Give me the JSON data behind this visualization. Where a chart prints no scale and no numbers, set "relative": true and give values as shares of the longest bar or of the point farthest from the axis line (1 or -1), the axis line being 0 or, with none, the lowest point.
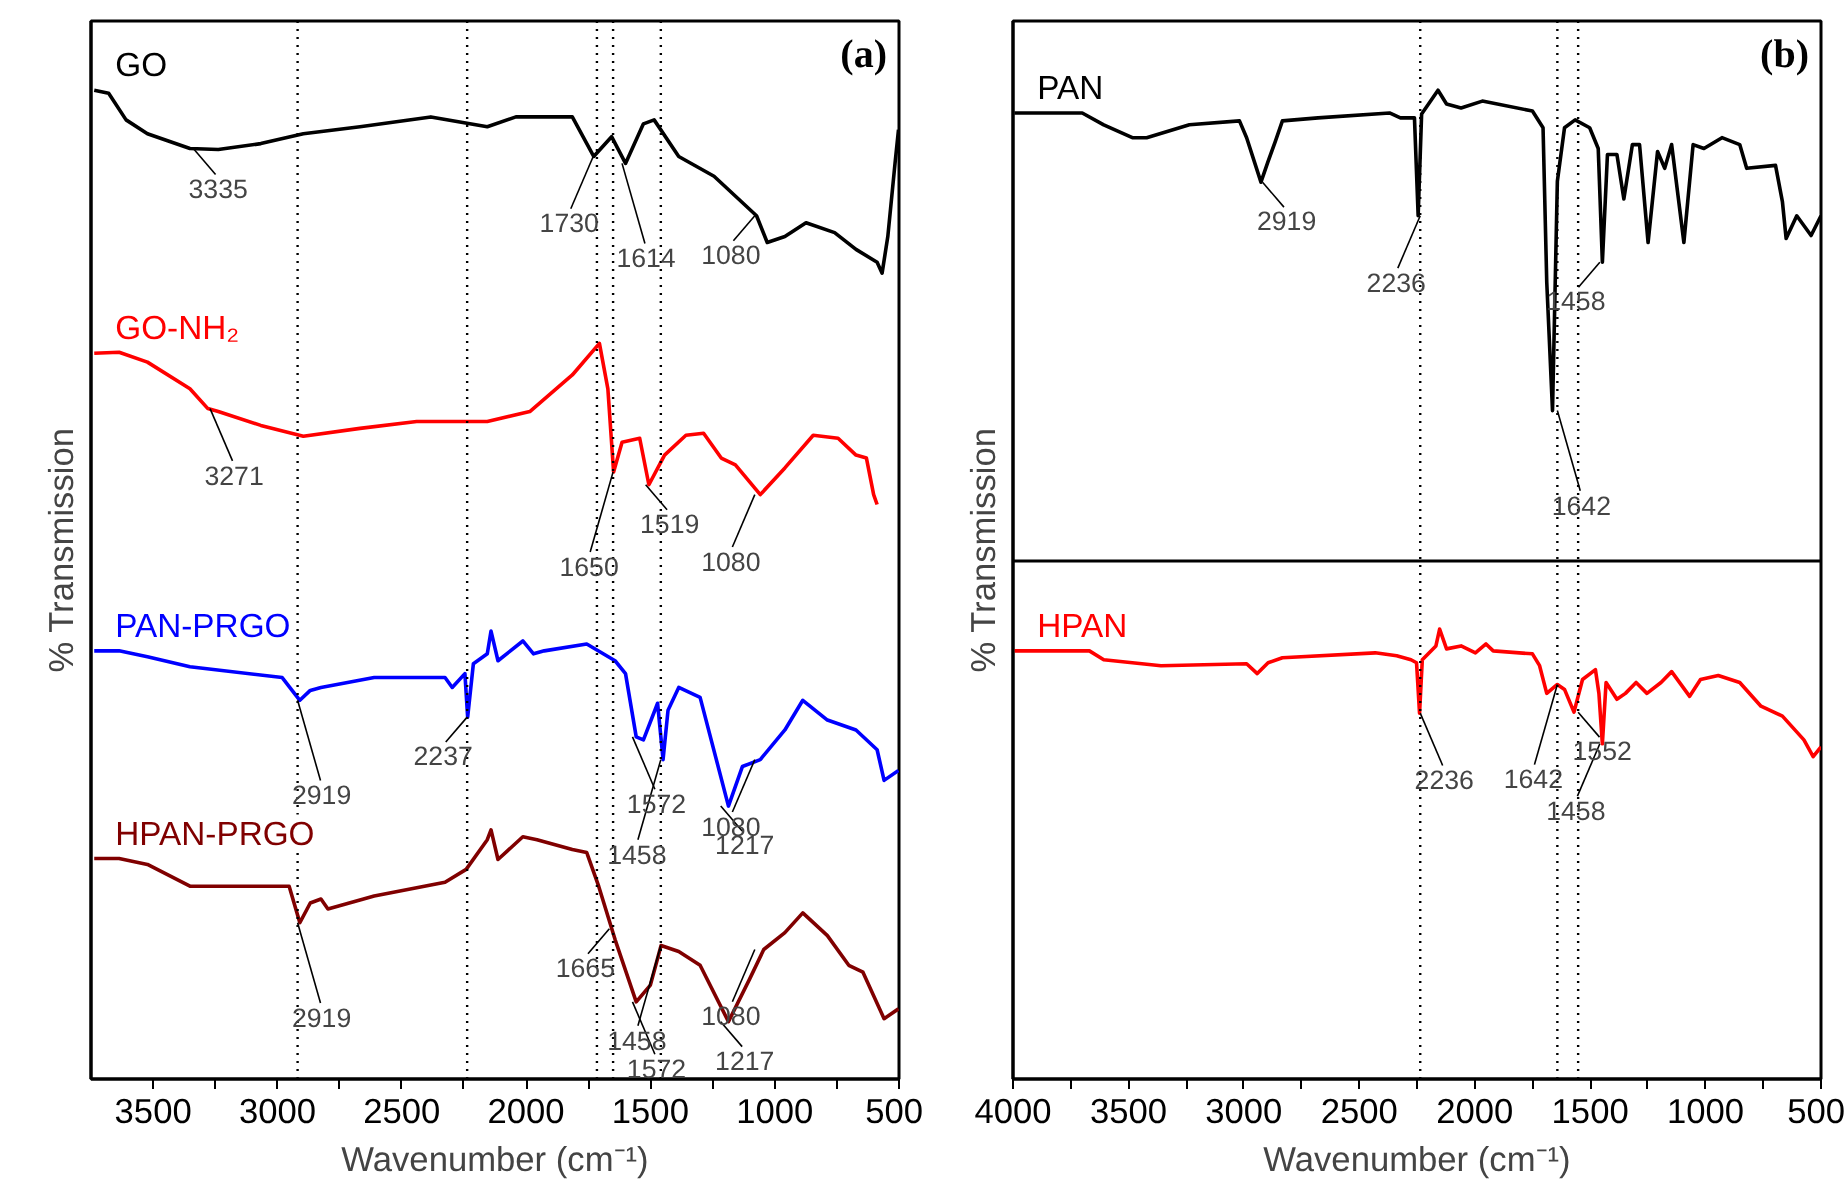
{
  "chart_data": [
    {
      "type": "line",
      "title": "(a)",
      "xlabel": "Wavenumber (cm⁻¹)",
      "ylabel": "% Transmission",
      "relative": true,
      "xlim": [
        3750,
        500
      ],
      "xticks": [
        3500,
        {
          "value": 3250,
          "label": null
        },
        3000,
        {
          "value": 2750,
          "label": null
        },
        2500,
        {
          "value": 2250,
          "label": null
        },
        2000,
        {
          "value": 1750,
          "label": null
        },
        1500,
        {
          "value": 1250,
          "label": null
        },
        1000,
        {
          "value": 750,
          "label": null
        },
        500
      ],
      "series": [
        {
          "name": "GO",
          "color": "#000000",
          "x": [
            3737,
            3679,
            3609,
            3523,
            3352,
            3238,
            3067,
            2896,
            2668,
            2383,
            2156,
            2041,
            1814,
            1728,
            1656,
            1600,
            1528,
            1485,
            1386,
            1244,
            1073,
            1030,
            959,
            874,
            759,
            673,
            588,
            568,
            545,
            516,
            502
          ],
          "values": [
            1.0,
            0.997,
            0.97,
            0.956,
            0.941,
            0.94,
            0.946,
            0.956,
            0.963,
            0.973,
            0.963,
            0.973,
            0.973,
            0.933,
            0.953,
            0.926,
            0.966,
            0.97,
            0.933,
            0.913,
            0.873,
            0.846,
            0.852,
            0.866,
            0.856,
            0.839,
            0.826,
            0.815,
            0.852,
            0.926,
            0.96
          ]
        },
        {
          "name": "GO-NH₂",
          "color": "#ff0000",
          "x": [
            3737,
            3637,
            3523,
            3352,
            3280,
            3238,
            3067,
            2896,
            2668,
            2440,
            2156,
            1985,
            1814,
            1705,
            1671,
            1648,
            1614,
            1543,
            1506,
            1443,
            1357,
            1286,
            1215,
            1158,
            1058,
            959,
            845,
            745,
            673,
            631,
            602,
            588
          ],
          "values": [
            0.734,
            0.735,
            0.725,
            0.698,
            0.678,
            0.675,
            0.661,
            0.65,
            0.658,
            0.665,
            0.665,
            0.675,
            0.712,
            0.744,
            0.698,
            0.614,
            0.644,
            0.648,
            0.601,
            0.631,
            0.651,
            0.653,
            0.628,
            0.621,
            0.591,
            0.618,
            0.651,
            0.648,
            0.631,
            0.628,
            0.591,
            0.581
          ]
        },
        {
          "name": "PAN-PRGO",
          "color": "#0000ff",
          "x": [
            3737,
            3637,
            3523,
            3352,
            2981,
            2910,
            2868,
            2825,
            2611,
            2326,
            2297,
            2246,
            2235,
            2212,
            2156,
            2141,
            2113,
            2013,
            1970,
            1927,
            1756,
            1642,
            1600,
            1557,
            1528,
            1471,
            1449,
            1429,
            1386,
            1300,
            1186,
            1130,
            1058,
            959,
            887,
            788,
            673,
            588,
            560,
            502
          ],
          "values": [
            0.433,
            0.433,
            0.427,
            0.417,
            0.406,
            0.383,
            0.393,
            0.396,
            0.406,
            0.406,
            0.396,
            0.41,
            0.366,
            0.42,
            0.43,
            0.453,
            0.423,
            0.443,
            0.43,
            0.433,
            0.44,
            0.423,
            0.41,
            0.346,
            0.343,
            0.38,
            0.323,
            0.373,
            0.396,
            0.386,
            0.276,
            0.316,
            0.323,
            0.353,
            0.383,
            0.363,
            0.353,
            0.333,
            0.302,
            0.312
          ]
        },
        {
          "name": "HPAN-PRGO",
          "color": "#800000",
          "x": [
            3737,
            3637,
            3523,
            3352,
            2953,
            2910,
            2868,
            2825,
            2797,
            2611,
            2326,
            2241,
            2156,
            2141,
            2113,
            2013,
            1956,
            1814,
            1756,
            1708,
            1642,
            1557,
            1500,
            1457,
            1386,
            1300,
            1186,
            1101,
            1044,
            959,
            887,
            788,
            702,
            645,
            560,
            502
          ],
          "values": [
            0.223,
            0.223,
            0.217,
            0.195,
            0.195,
            0.158,
            0.178,
            0.182,
            0.172,
            0.185,
            0.199,
            0.212,
            0.242,
            0.252,
            0.222,
            0.245,
            0.242,
            0.232,
            0.229,
            0.195,
            0.141,
            0.078,
            0.095,
            0.135,
            0.129,
            0.115,
            0.058,
            0.101,
            0.131,
            0.148,
            0.168,
            0.145,
            0.115,
            0.108,
            0.061,
            0.071
          ]
        }
      ],
      "annotations": [
        {
          "text": "3335",
          "x": 3335,
          "y": 0.94
        },
        {
          "text": "1730",
          "x": 1730,
          "y": 0.933
        },
        {
          "text": "1614",
          "x": 1614,
          "y": 0.926
        },
        {
          "text": "1080",
          "x": 1080,
          "y": 0.873
        },
        {
          "text": "3271",
          "x": 3271,
          "y": 0.678
        },
        {
          "text": "1650",
          "x": 1650,
          "y": 0.614
        },
        {
          "text": "1519",
          "x": 1519,
          "y": 0.601
        },
        {
          "text": "1080",
          "x": 1080,
          "y": 0.591
        },
        {
          "text": "2919",
          "x": 2919,
          "y": 0.383
        },
        {
          "text": "2237",
          "x": 2237,
          "y": 0.366
        },
        {
          "text": "1572",
          "x": 1572,
          "y": 0.346
        },
        {
          "text": "1458",
          "x": 1458,
          "y": 0.323
        },
        {
          "text": "1217",
          "x": 1217,
          "y": 0.276
        },
        {
          "text": "1080",
          "x": 1080,
          "y": 0.323
        },
        {
          "text": "2919",
          "x": 2919,
          "y": 0.158
        },
        {
          "text": "1665",
          "x": 1665,
          "y": 0.152
        },
        {
          "text": "1572",
          "x": 1572,
          "y": 0.078
        },
        {
          "text": "1458",
          "x": 1458,
          "y": 0.135
        },
        {
          "text": "1217",
          "x": 1217,
          "y": 0.058
        },
        {
          "text": "1080",
          "x": 1080,
          "y": 0.131
        }
      ],
      "ref_lines": [
        {
          "axis": "x",
          "value": 2919,
          "color": "#000000",
          "line_style": "dotted"
        },
        {
          "axis": "x",
          "value": 2237,
          "color": "#000000",
          "line_style": "dotted"
        },
        {
          "axis": "x",
          "value": 1715,
          "color": "#000000",
          "line_style": "dotted"
        },
        {
          "axis": "x",
          "value": 1650,
          "color": "#000000",
          "line_style": "dotted"
        },
        {
          "axis": "x",
          "value": 1458,
          "color": "#000000",
          "line_style": "dotted"
        }
      ]
    },
    {
      "type": "line",
      "title": "(b)",
      "xlabel": "Wavenumber (cm⁻¹)",
      "ylabel": "% Transmission",
      "relative": true,
      "xlim": [
        4000,
        500
      ],
      "xticks": [
        4000,
        {
          "value": 3750,
          "label": null
        },
        3500,
        {
          "value": 3250,
          "label": null
        },
        3000,
        {
          "value": 2750,
          "label": null
        },
        2500,
        {
          "value": 2250,
          "label": null
        },
        2000,
        {
          "value": 1750,
          "label": null
        },
        1500,
        {
          "value": 1250,
          "label": null
        },
        1000,
        {
          "value": 750,
          "label": null
        },
        500
      ],
      "series": [
        {
          "name": "PAN",
          "color": "#000000",
          "x": [
            3994,
            3700,
            3607,
            3483,
            3421,
            3236,
            3019,
            2988,
            2926,
            2895,
            2864,
            2833,
            2679,
            2369,
            2322,
            2261,
            2245,
            2230,
            2159,
            2122,
            2059,
            1967,
            1750,
            1704,
            1688,
            1663,
            1642,
            1611,
            1565,
            1502,
            1465,
            1447,
            1425,
            1384,
            1354,
            1317,
            1286,
            1249,
            1208,
            1177,
            1147,
            1094,
            1054,
            1007,
            929,
            852,
            822,
            697,
            667,
            651,
            605,
            543,
            500
          ],
          "values": [
            0.977,
            0.977,
            0.965,
            0.952,
            0.952,
            0.965,
            0.969,
            0.952,
            0.907,
            0.928,
            0.948,
            0.969,
            0.972,
            0.977,
            0.972,
            0.972,
            0.873,
            0.976,
            1.0,
            0.986,
            0.982,
            0.989,
            0.979,
            0.962,
            0.806,
            0.676,
            0.908,
            0.962,
            0.97,
            0.962,
            0.941,
            0.826,
            0.935,
            0.935,
            0.89,
            0.945,
            0.945,
            0.846,
            0.938,
            0.921,
            0.945,
            0.846,
            0.945,
            0.941,
            0.952,
            0.945,
            0.921,
            0.924,
            0.887,
            0.85,
            0.873,
            0.853,
            0.873
          ]
        },
        {
          "name": "HPAN",
          "color": "#ff0000",
          "x": [
            3994,
            3669,
            3607,
            3359,
            2988,
            2942,
            2895,
            2833,
            2431,
            2338,
            2276,
            2252,
            2239,
            2227,
            2168,
            2152,
            2122,
            2059,
            1997,
            1951,
            1920,
            1750,
            1719,
            1688,
            1642,
            1611,
            1570,
            1533,
            1477,
            1462,
            1447,
            1431,
            1384,
            1347,
            1301,
            1254,
            1193,
            1147,
            1069,
            1022,
            945,
            852,
            760,
            667,
            574,
            534,
            500
          ],
          "values": [
            0.433,
            0.433,
            0.424,
            0.418,
            0.42,
            0.41,
            0.421,
            0.426,
            0.431,
            0.428,
            0.424,
            0.421,
            0.37,
            0.424,
            0.438,
            0.455,
            0.435,
            0.438,
            0.431,
            0.44,
            0.433,
            0.43,
            0.418,
            0.39,
            0.399,
            0.394,
            0.371,
            0.404,
            0.414,
            0.39,
            0.339,
            0.401,
            0.384,
            0.39,
            0.401,
            0.39,
            0.401,
            0.412,
            0.387,
            0.404,
            0.408,
            0.401,
            0.377,
            0.367,
            0.343,
            0.326,
            0.336
          ]
        }
      ],
      "annotations": [
        {
          "text": "2919",
          "x": 2919,
          "y": 0.907
        },
        {
          "text": "2236",
          "x": 2236,
          "y": 0.873
        },
        {
          "text": "1642",
          "x": 1642,
          "y": 0.676
        },
        {
          "text": "1458",
          "x": 1458,
          "y": 0.826
        },
        {
          "text": "2236",
          "x": 2236,
          "y": 0.37
        },
        {
          "text": "1642",
          "x": 1642,
          "y": 0.399
        },
        {
          "text": "1552",
          "x": 1552,
          "y": 0.371
        },
        {
          "text": "1458",
          "x": 1458,
          "y": 0.339
        }
      ],
      "ref_lines": [
        {
          "axis": "x",
          "value": 2236,
          "color": "#000000",
          "line_style": "dotted"
        },
        {
          "axis": "x",
          "value": 1642,
          "color": "#000000",
          "line_style": "dotted"
        },
        {
          "axis": "x",
          "value": 1552,
          "color": "#000000",
          "line_style": "dotted"
        },
        {
          "axis": "y",
          "value": 0.524,
          "color": "#000000",
          "line_style": "solid"
        }
      ]
    }
  ]
}
